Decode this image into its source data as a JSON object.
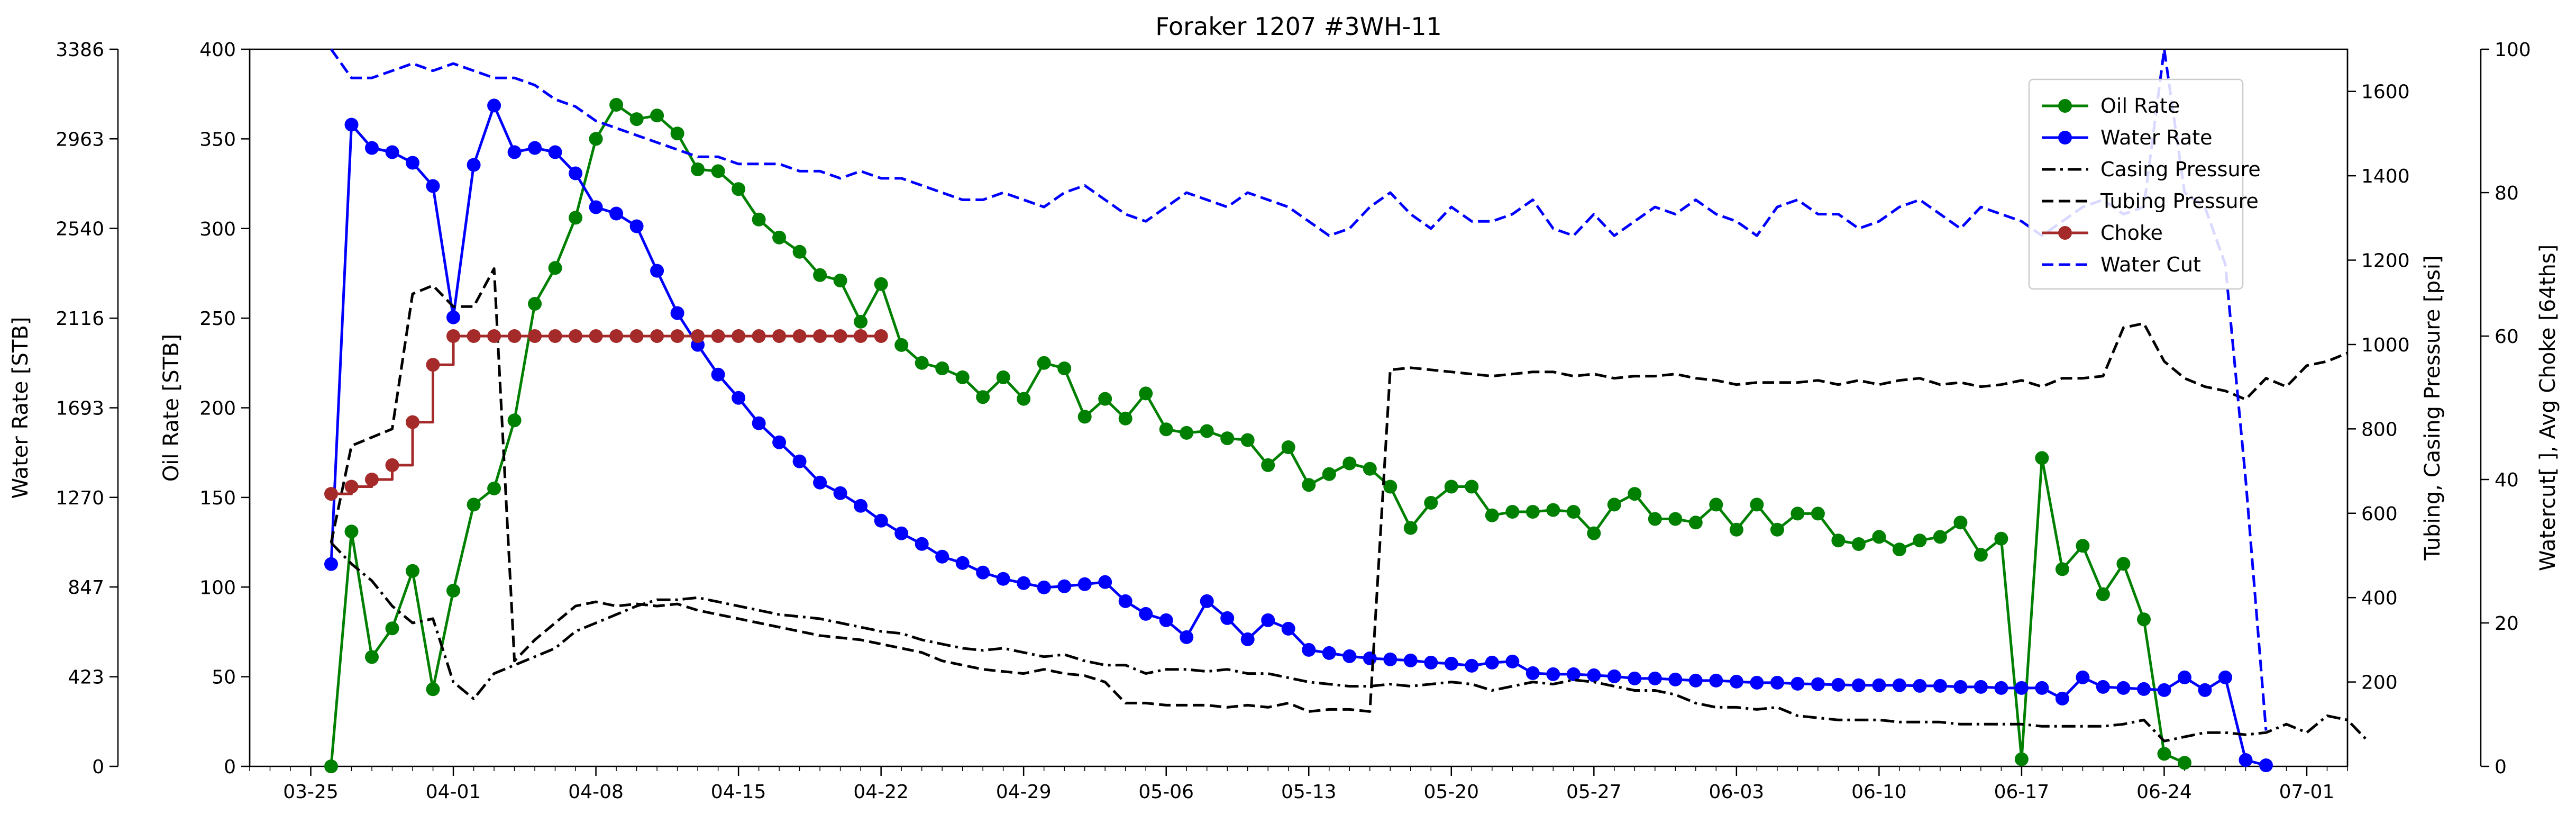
{
  "chart_data": {
    "type": "line",
    "title": "Foraker 1207 #3WH-11",
    "x_axis": {
      "type": "date",
      "year": 2019,
      "range": [
        "2019-03-22",
        "2019-07-03"
      ],
      "tick_dates": [
        "2019-03-25",
        "2019-04-01",
        "2019-04-08",
        "2019-04-15",
        "2019-04-22",
        "2019-04-29",
        "2019-05-06",
        "2019-05-13",
        "2019-05-20",
        "2019-05-27",
        "2019-06-03",
        "2019-06-10",
        "2019-06-17",
        "2019-06-24",
        "2019-07-01"
      ],
      "tick_labels": [
        "03-25",
        "04-01",
        "04-08",
        "04-15",
        "04-22",
        "04-29",
        "05-06",
        "05-13",
        "05-20",
        "05-27",
        "06-03",
        "06-10",
        "06-17",
        "06-24",
        "07-01"
      ]
    },
    "y_axes": {
      "water": {
        "label": "Water Rate [STB]",
        "range": [
          0,
          3386
        ],
        "ticks": [
          0,
          423,
          847,
          1270,
          1693,
          2116,
          2540,
          2963,
          3386
        ]
      },
      "oil": {
        "label": "Oil Rate [STB]",
        "range": [
          0,
          400
        ],
        "ticks": [
          0,
          50,
          100,
          150,
          200,
          250,
          300,
          350,
          400
        ]
      },
      "pressure": {
        "label": "Tubing, Casing Pressure [psi]",
        "range": [
          0,
          1700
        ],
        "ticks": [
          200,
          400,
          600,
          800,
          1000,
          1200,
          1400,
          1600
        ]
      },
      "cut": {
        "label": "Watercut[ ], Avg Choke [64ths]",
        "range": [
          0,
          100
        ],
        "ticks": [
          0,
          20,
          40,
          60,
          80,
          100
        ]
      }
    },
    "grid": false,
    "legend": {
      "position": "top-right",
      "entries": [
        {
          "label": "Oil Rate",
          "color": "#008000",
          "style": "solid-marker"
        },
        {
          "label": "Water Rate",
          "color": "#0000ff",
          "style": "solid-marker"
        },
        {
          "label": "Casing Pressure",
          "color": "#000000",
          "style": "dashdot"
        },
        {
          "label": "Tubing Pressure",
          "color": "#000000",
          "style": "dashed"
        },
        {
          "label": "Choke",
          "color": "#a52a2a",
          "style": "solid-marker"
        },
        {
          "label": "Water Cut",
          "color": "#0000ff",
          "style": "dashed"
        }
      ]
    },
    "series": [
      {
        "name": "Oil Rate",
        "axis": "oil",
        "color": "#008000",
        "style": "solid",
        "marker": true,
        "start": "2019-03-26",
        "values": [
          0,
          131,
          61,
          77,
          109,
          43,
          98,
          146,
          155,
          193,
          258,
          278,
          306,
          350,
          369,
          361,
          363,
          353,
          333,
          332,
          322,
          305,
          295,
          287,
          274,
          271,
          248,
          269,
          235,
          225,
          222,
          217,
          206,
          217,
          205,
          225,
          222,
          195,
          205,
          194,
          208,
          188,
          186,
          187,
          183,
          182,
          168,
          178,
          157,
          163,
          169,
          166,
          156,
          133,
          147,
          156,
          156,
          140,
          142,
          142,
          143,
          142,
          130,
          146,
          152,
          138,
          138,
          136,
          146,
          132,
          146,
          132,
          141,
          141,
          126,
          124,
          128,
          121,
          126,
          128,
          136,
          118,
          127,
          4,
          172,
          110,
          123,
          96,
          113,
          82,
          7,
          2
        ]
      },
      {
        "name": "Water Rate",
        "axis": "water",
        "color": "#0000ff",
        "style": "solid",
        "marker": true,
        "start": "2019-03-26",
        "values": [
          955,
          3030,
          2920,
          2900,
          2850,
          2740,
          2120,
          2840,
          3120,
          2900,
          2920,
          2900,
          2800,
          2640,
          2610,
          2550,
          2340,
          2140,
          1990,
          1850,
          1740,
          1620,
          1530,
          1440,
          1340,
          1290,
          1230,
          1160,
          1100,
          1050,
          990,
          960,
          915,
          885,
          865,
          845,
          850,
          860,
          870,
          780,
          720,
          690,
          610,
          780,
          700,
          600,
          690,
          650,
          550,
          535,
          520,
          510,
          505,
          500,
          490,
          485,
          475,
          490,
          495,
          440,
          435,
          435,
          430,
          425,
          415,
          415,
          410,
          405,
          405,
          400,
          395,
          395,
          390,
          388,
          385,
          383,
          383,
          383,
          380,
          380,
          375,
          375,
          370,
          370,
          370,
          320,
          420,
          375,
          370,
          365,
          360,
          420,
          360,
          420,
          30,
          5
        ]
      },
      {
        "name": "Casing Pressure",
        "axis": "pressure",
        "color": "#000000",
        "style": "dashdot",
        "marker": false,
        "start": "2019-03-26",
        "values": [
          530,
          480,
          440,
          380,
          340,
          350,
          200,
          160,
          220,
          240,
          260,
          280,
          320,
          340,
          360,
          380,
          395,
          395,
          400,
          390,
          380,
          370,
          360,
          355,
          350,
          340,
          330,
          320,
          315,
          300,
          290,
          280,
          275,
          280,
          270,
          260,
          265,
          250,
          240,
          240,
          220,
          230,
          230,
          225,
          230,
          220,
          220,
          210,
          200,
          195,
          190,
          190,
          195,
          190,
          195,
          200,
          195,
          180,
          190,
          200,
          195,
          205,
          200,
          190,
          180,
          180,
          170,
          150,
          140,
          140,
          135,
          140,
          120,
          115,
          110,
          110,
          110,
          105,
          105,
          105,
          100,
          100,
          100,
          100,
          95,
          95,
          95,
          95,
          100,
          110,
          60,
          70,
          80,
          80,
          75,
          80,
          100,
          80,
          120,
          110,
          60
        ]
      },
      {
        "name": "Tubing Pressure",
        "axis": "pressure",
        "color": "#000000",
        "style": "dashed",
        "marker": false,
        "start": "2019-03-26",
        "values": [
          530,
          760,
          780,
          800,
          1120,
          1140,
          1090,
          1090,
          1180,
          250,
          300,
          340,
          380,
          390,
          380,
          385,
          380,
          385,
          370,
          360,
          350,
          340,
          330,
          320,
          310,
          305,
          300,
          290,
          280,
          270,
          250,
          240,
          230,
          225,
          220,
          230,
          220,
          215,
          200,
          150,
          150,
          145,
          145,
          145,
          140,
          145,
          140,
          150,
          130,
          135,
          135,
          130,
          940,
          945,
          940,
          935,
          930,
          925,
          930,
          935,
          935,
          925,
          930,
          920,
          925,
          925,
          930,
          920,
          915,
          905,
          910,
          910,
          910,
          915,
          905,
          915,
          905,
          915,
          920,
          905,
          910,
          900,
          905,
          915,
          900,
          920,
          920,
          925,
          1040,
          1050,
          960,
          920,
          900,
          890,
          870,
          920,
          900,
          950,
          960,
          980
        ]
      },
      {
        "name": "Choke",
        "axis": "cut",
        "color": "#a52a2a",
        "style": "step",
        "marker": true,
        "start": "2019-03-26",
        "values": [
          38,
          39,
          40,
          42,
          48,
          56,
          60,
          60,
          60,
          60,
          60,
          60,
          60,
          60,
          60,
          60,
          60,
          60,
          60,
          60,
          60,
          60,
          60,
          60,
          60,
          60,
          60,
          60
        ]
      },
      {
        "name": "Water Cut",
        "axis": "cut",
        "color": "#0000ff",
        "style": "dashed",
        "marker": false,
        "start": "2019-03-26",
        "values": [
          100,
          96,
          96,
          97,
          98,
          97,
          98,
          97,
          96,
          96,
          95,
          93,
          92,
          90,
          89,
          88,
          87,
          86,
          85,
          85,
          84,
          84,
          84,
          83,
          83,
          82,
          83,
          82,
          82,
          81,
          80,
          79,
          79,
          80,
          79,
          78,
          80,
          81,
          79,
          77,
          76,
          78,
          80,
          79,
          78,
          80,
          79,
          78,
          76,
          74,
          75,
          78,
          80,
          77,
          75,
          78,
          76,
          76,
          77,
          79,
          75,
          74,
          77,
          74,
          76,
          78,
          77,
          79,
          77,
          76,
          74,
          78,
          79,
          77,
          77,
          75,
          76,
          78,
          79,
          77,
          75,
          78,
          77,
          76,
          74,
          76,
          78,
          79,
          77,
          78,
          100,
          80,
          78,
          70,
          40,
          5
        ]
      }
    ]
  }
}
